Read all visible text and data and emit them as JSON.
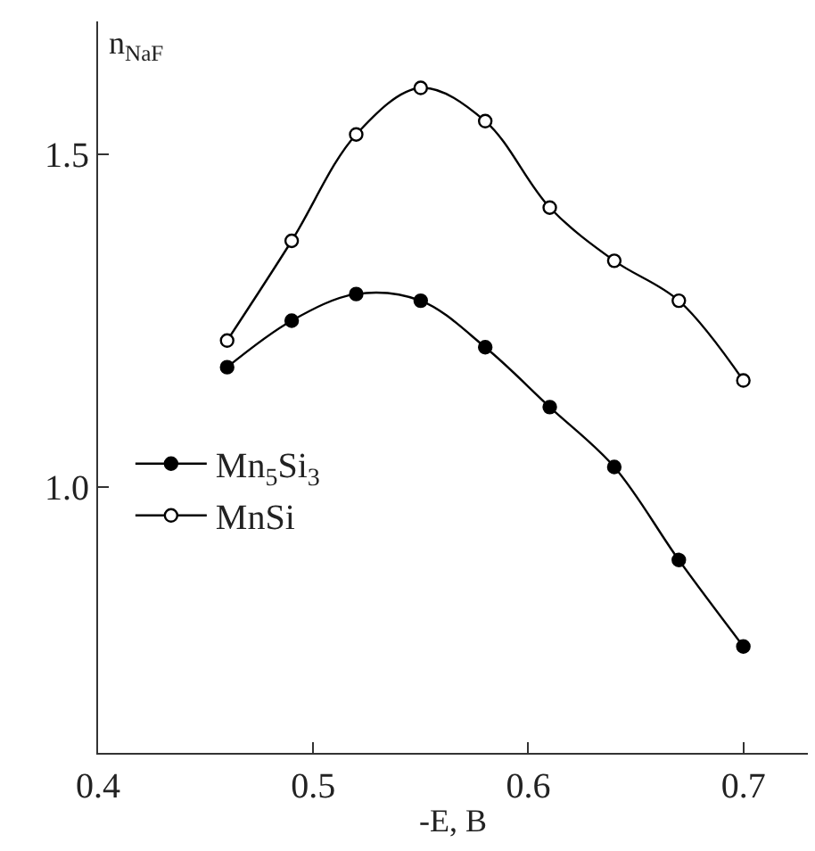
{
  "chart_data": {
    "type": "line",
    "xlabel": "-E, B",
    "ylabel": "n$_{NaF}$",
    "x": [
      0.46,
      0.49,
      0.52,
      0.55,
      0.58,
      0.61,
      0.64,
      0.67,
      0.7
    ],
    "series": [
      {
        "name": "Mn$_{5}$Si$_{3}$",
        "color": "#000000",
        "marker": "circle",
        "values": [
          1.18,
          1.25,
          1.29,
          1.28,
          1.21,
          1.12,
          1.03,
          0.89,
          0.76
        ]
      },
      {
        "name": "MnSi",
        "color": "#000000",
        "marker": "circle",
        "values": [
          1.22,
          1.37,
          1.53,
          1.6,
          1.55,
          1.42,
          1.34,
          1.28,
          1.16
        ]
      }
    ],
    "xlim": [
      0.4,
      0.73
    ],
    "ylim": [
      0.6,
      1.7
    ],
    "xticks": [
      0.4,
      0.5,
      0.6,
      0.7
    ],
    "yticks": [
      {
        "value": 1.0,
        "label": "1.0"
      },
      1.5
    ],
    "legend": "left"
  }
}
